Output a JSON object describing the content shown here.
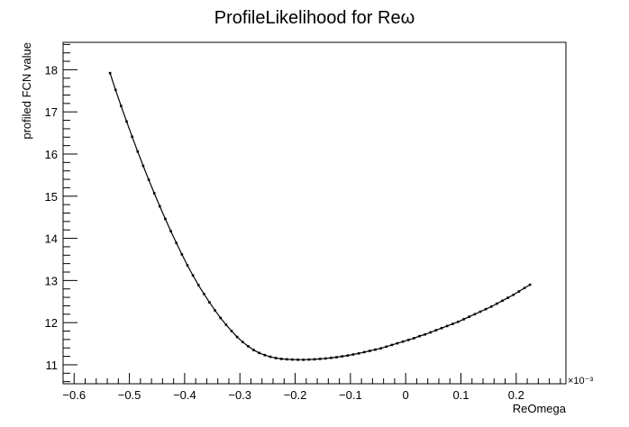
{
  "chart_data": {
    "type": "line",
    "title": "ProfileLikelihood for Reω",
    "xlabel": "ReOmega",
    "ylabel": "profiled FCN value",
    "x_exponent_label": "×10⁻³",
    "xlim": [
      -0.62,
      0.29
    ],
    "ylim": [
      10.55,
      18.65
    ],
    "x_ticks_major": [
      -0.6,
      -0.5,
      -0.4,
      -0.3,
      -0.2,
      -0.1,
      0,
      0.1,
      0.2
    ],
    "x_tick_labels": [
      "−0.6",
      "−0.5",
      "−0.4",
      "−0.3",
      "−0.2",
      "−0.1",
      "0",
      "0.1",
      "0.2"
    ],
    "y_ticks_major": [
      11,
      12,
      13,
      14,
      15,
      16,
      17,
      18
    ],
    "y_tick_labels": [
      "11",
      "12",
      "13",
      "14",
      "15",
      "16",
      "17",
      "18"
    ],
    "grid": false,
    "legend": "none",
    "series": [
      {
        "x": [
          -0.535,
          -0.525,
          -0.515,
          -0.505,
          -0.495,
          -0.485,
          -0.475,
          -0.465,
          -0.455,
          -0.445,
          -0.435,
          -0.425,
          -0.415,
          -0.405,
          -0.395,
          -0.385,
          -0.375,
          -0.365,
          -0.355,
          -0.345,
          -0.335,
          -0.325,
          -0.315,
          -0.305,
          -0.295,
          -0.285,
          -0.275,
          -0.265,
          -0.255,
          -0.245,
          -0.235,
          -0.225,
          -0.215,
          -0.205,
          -0.195,
          -0.185,
          -0.175,
          -0.165,
          -0.155,
          -0.145,
          -0.135,
          -0.125,
          -0.115,
          -0.105,
          -0.095,
          -0.085,
          -0.075,
          -0.065,
          -0.055,
          -0.045,
          -0.035,
          -0.025,
          -0.015,
          -0.005,
          0.005,
          0.015,
          0.025,
          0.035,
          0.045,
          0.055,
          0.065,
          0.075,
          0.085,
          0.095,
          0.105,
          0.115,
          0.125,
          0.135,
          0.145,
          0.155,
          0.165,
          0.175,
          0.185,
          0.195,
          0.205,
          0.215,
          0.225
        ],
        "y": [
          17.92,
          17.52,
          17.14,
          16.77,
          16.41,
          16.06,
          15.72,
          15.39,
          15.07,
          14.76,
          14.46,
          14.17,
          13.89,
          13.62,
          13.36,
          13.12,
          12.89,
          12.68,
          12.48,
          12.29,
          12.11,
          11.95,
          11.8,
          11.66,
          11.54,
          11.44,
          11.35,
          11.28,
          11.23,
          11.19,
          11.16,
          11.14,
          11.13,
          11.125,
          11.12,
          11.12,
          11.125,
          11.13,
          11.14,
          11.15,
          11.165,
          11.18,
          11.2,
          11.22,
          11.245,
          11.27,
          11.3,
          11.33,
          11.36,
          11.39,
          11.43,
          11.47,
          11.51,
          11.55,
          11.59,
          11.63,
          11.68,
          11.72,
          11.77,
          11.82,
          11.87,
          11.92,
          11.97,
          12.02,
          12.08,
          12.14,
          12.2,
          12.26,
          12.32,
          12.38,
          12.45,
          12.52,
          12.59,
          12.66,
          12.74,
          12.82,
          12.9
        ]
      }
    ]
  }
}
